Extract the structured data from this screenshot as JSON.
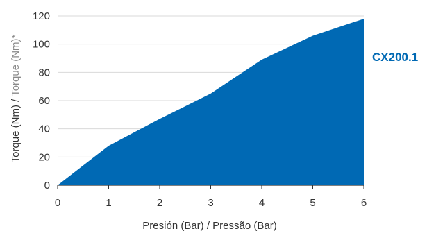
{
  "chart_data": {
    "type": "area",
    "x": [
      0,
      1,
      2,
      3,
      4,
      5,
      6
    ],
    "series": [
      {
        "name": "CX200.1",
        "values": [
          0,
          28,
          47,
          65,
          89,
          106,
          118
        ],
        "color": "#0069b4"
      }
    ],
    "xlabel": "Presión (Bar) / Pressão (Bar)",
    "ylabel_es": "Torque (Nm)",
    "ylabel_separator": " / ",
    "ylabel_pt": "Torque (Nm)*",
    "xlim": [
      0,
      6
    ],
    "ylim": [
      0,
      120
    ],
    "xticks": [
      "0",
      "1",
      "2",
      "3",
      "4",
      "5",
      "6"
    ],
    "yticks": [
      "0",
      "20",
      "40",
      "60",
      "80",
      "100",
      "120"
    ],
    "grid": "horizontal",
    "grid_color": "#d9d9d9",
    "axis_color": "#333333",
    "legend_placement": "right"
  }
}
